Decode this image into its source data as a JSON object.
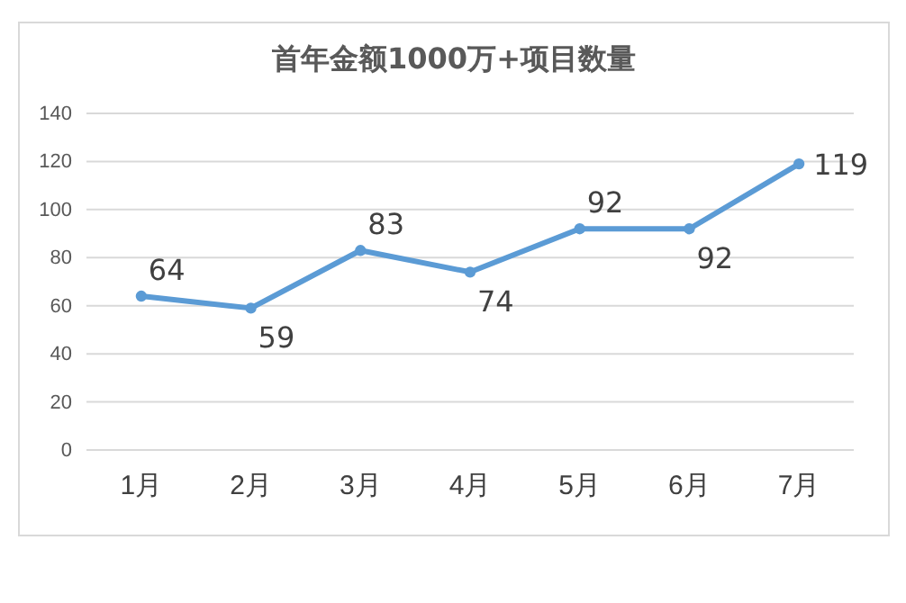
{
  "chart_data": {
    "type": "line",
    "title": "首年金额1000万+项目数量",
    "categories": [
      "1月",
      "2月",
      "3月",
      "4月",
      "5月",
      "6月",
      "7月"
    ],
    "series": [
      {
        "color": "#5b9bd5",
        "values": [
          64,
          59,
          83,
          74,
          92,
          92,
          119
        ]
      }
    ],
    "ylim": [
      0,
      140
    ],
    "yticks": [
      0,
      20,
      40,
      60,
      80,
      100,
      120,
      140
    ],
    "grid": "y",
    "marker": "circle",
    "line_style": "solid",
    "data_labels": true
  }
}
